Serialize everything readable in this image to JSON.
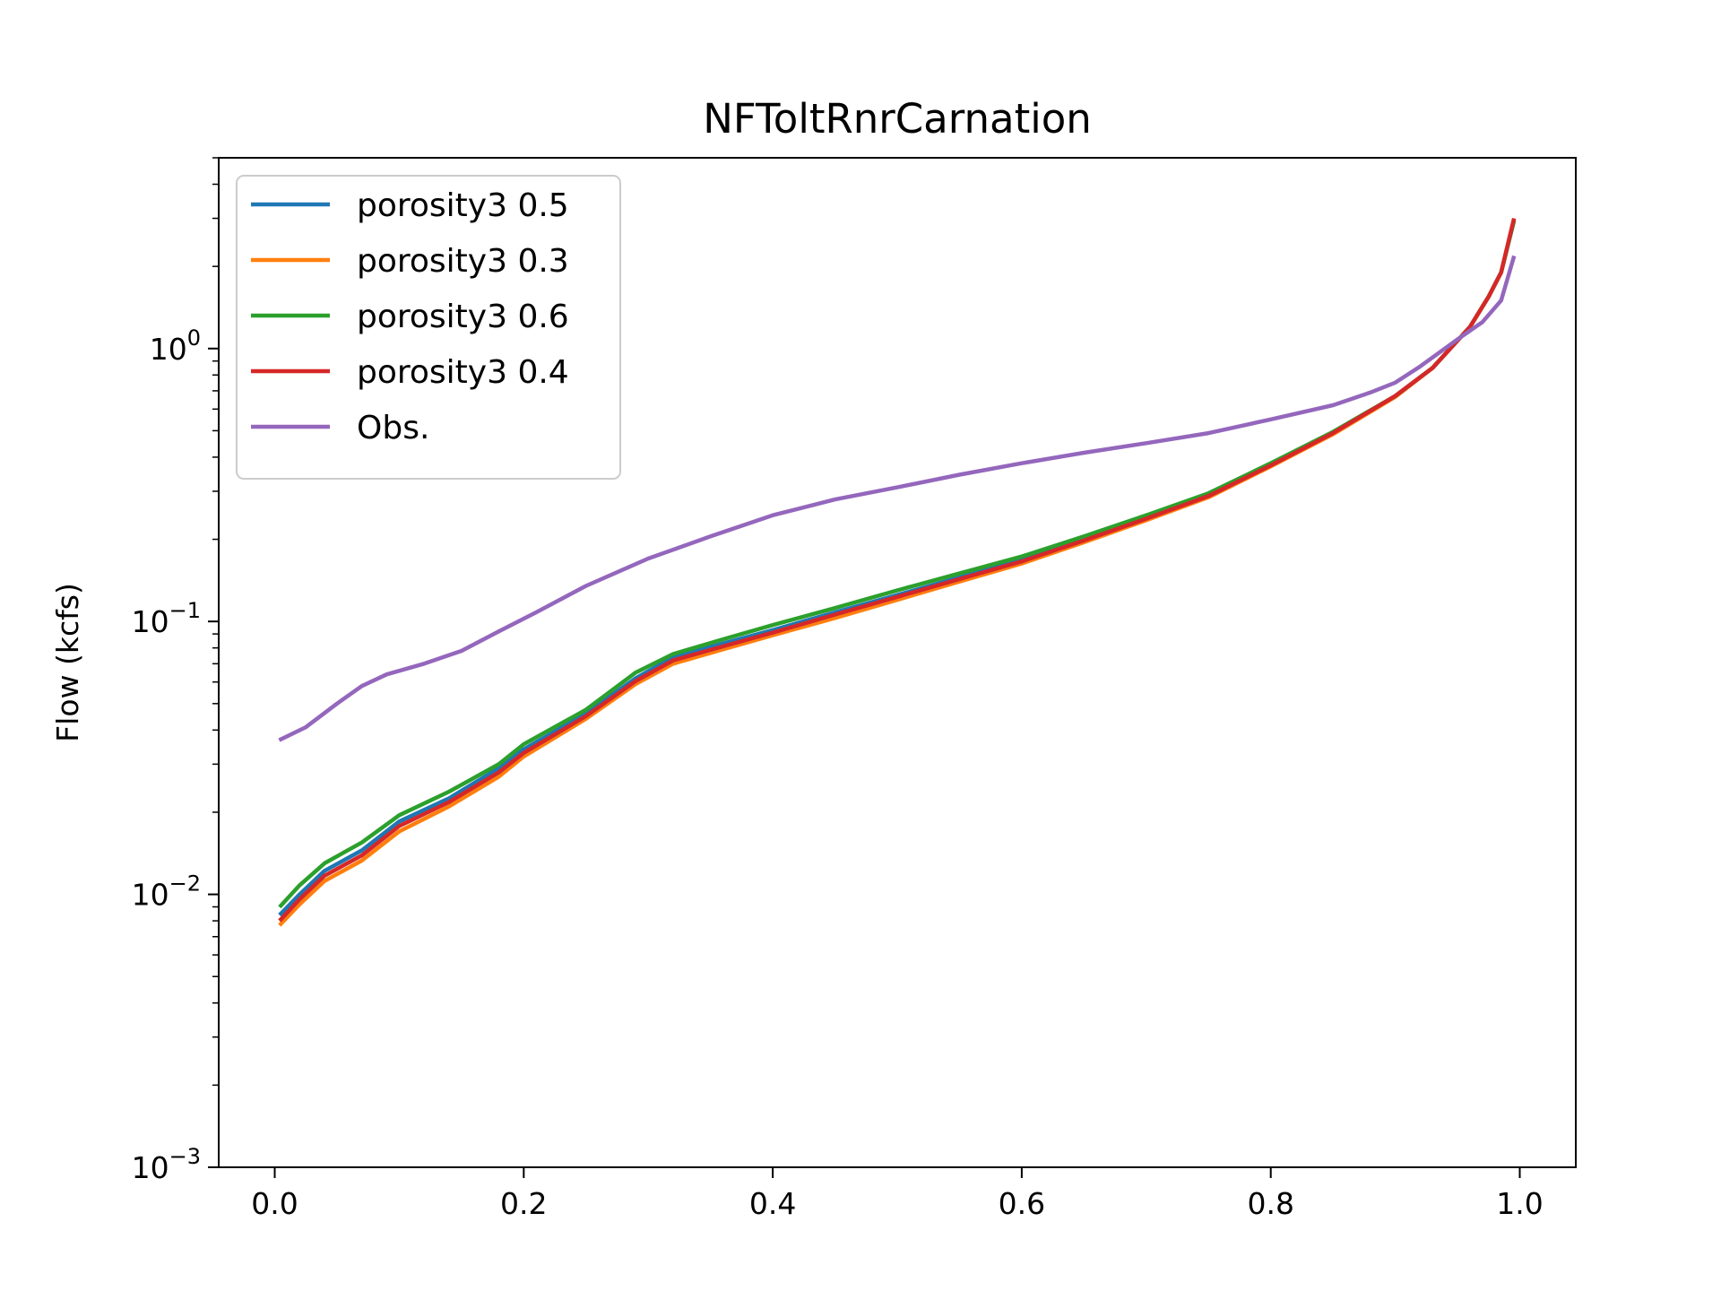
{
  "chart_data": {
    "type": "line",
    "title": "NFToltRnrCarnation",
    "xlabel": "",
    "ylabel": "Flow (kcfs)",
    "yscale": "log",
    "xlim": [
      -0.045,
      1.045
    ],
    "ylim": [
      0.001,
      5.0
    ],
    "grid": false,
    "legend_position": "top-left",
    "x_ticks": [
      {
        "value": 0.0,
        "label": "0.0"
      },
      {
        "value": 0.2,
        "label": "0.2"
      },
      {
        "value": 0.4,
        "label": "0.4"
      },
      {
        "value": 0.6,
        "label": "0.6"
      },
      {
        "value": 0.8,
        "label": "0.8"
      },
      {
        "value": 1.0,
        "label": "1.0"
      }
    ],
    "y_ticks": [
      {
        "value": 0.001,
        "base": "10",
        "exp": "−3"
      },
      {
        "value": 0.01,
        "base": "10",
        "exp": "−2"
      },
      {
        "value": 0.1,
        "base": "10",
        "exp": "−1"
      },
      {
        "value": 1.0,
        "base": "10",
        "exp": "0"
      }
    ],
    "series": [
      {
        "name": "porosity3 0.5",
        "color": "#1f77b4",
        "x": [
          0.005,
          0.02,
          0.04,
          0.07,
          0.1,
          0.14,
          0.18,
          0.2,
          0.25,
          0.29,
          0.32,
          0.36,
          0.4,
          0.45,
          0.5,
          0.55,
          0.6,
          0.65,
          0.7,
          0.75,
          0.8,
          0.85,
          0.9,
          0.93,
          0.96,
          0.975,
          0.985,
          0.995
        ],
        "values": [
          0.0085,
          0.01,
          0.0122,
          0.0145,
          0.0185,
          0.0225,
          0.029,
          0.034,
          0.046,
          0.062,
          0.074,
          0.083,
          0.093,
          0.108,
          0.125,
          0.145,
          0.168,
          0.2,
          0.24,
          0.29,
          0.375,
          0.49,
          0.67,
          0.85,
          1.2,
          1.55,
          1.9,
          2.9
        ]
      },
      {
        "name": "porosity3 0.3",
        "color": "#ff7f0e",
        "x": [
          0.005,
          0.02,
          0.04,
          0.07,
          0.1,
          0.14,
          0.18,
          0.2,
          0.25,
          0.29,
          0.32,
          0.36,
          0.4,
          0.45,
          0.5,
          0.55,
          0.6,
          0.65,
          0.7,
          0.75,
          0.8,
          0.85,
          0.9,
          0.93,
          0.96,
          0.975,
          0.985,
          0.995
        ],
        "values": [
          0.0078,
          0.0092,
          0.0112,
          0.0133,
          0.017,
          0.021,
          0.027,
          0.032,
          0.044,
          0.059,
          0.07,
          0.079,
          0.089,
          0.103,
          0.12,
          0.14,
          0.163,
          0.195,
          0.235,
          0.285,
          0.37,
          0.485,
          0.665,
          0.85,
          1.2,
          1.55,
          1.9,
          2.95
        ]
      },
      {
        "name": "porosity3 0.6",
        "color": "#2ca02c",
        "x": [
          0.005,
          0.02,
          0.04,
          0.07,
          0.1,
          0.14,
          0.18,
          0.2,
          0.25,
          0.29,
          0.32,
          0.36,
          0.4,
          0.45,
          0.5,
          0.55,
          0.6,
          0.65,
          0.7,
          0.75,
          0.8,
          0.85,
          0.9,
          0.93,
          0.96,
          0.975,
          0.985,
          0.995
        ],
        "values": [
          0.0091,
          0.0108,
          0.013,
          0.0155,
          0.0195,
          0.0238,
          0.03,
          0.0355,
          0.0475,
          0.065,
          0.076,
          0.086,
          0.097,
          0.112,
          0.13,
          0.15,
          0.173,
          0.205,
          0.245,
          0.295,
          0.38,
          0.495,
          0.67,
          0.85,
          1.2,
          1.55,
          1.9,
          2.9
        ]
      },
      {
        "name": "porosity3 0.4",
        "color": "#d62728",
        "x": [
          0.005,
          0.02,
          0.04,
          0.07,
          0.1,
          0.14,
          0.18,
          0.2,
          0.25,
          0.29,
          0.32,
          0.36,
          0.4,
          0.45,
          0.5,
          0.55,
          0.6,
          0.65,
          0.7,
          0.75,
          0.8,
          0.85,
          0.9,
          0.93,
          0.96,
          0.975,
          0.985,
          0.995
        ],
        "values": [
          0.0081,
          0.0096,
          0.0117,
          0.0139,
          0.0178,
          0.0218,
          0.028,
          0.033,
          0.045,
          0.0605,
          0.072,
          0.081,
          0.091,
          0.106,
          0.123,
          0.143,
          0.166,
          0.198,
          0.238,
          0.288,
          0.373,
          0.49,
          0.67,
          0.85,
          1.2,
          1.55,
          1.9,
          2.95
        ]
      },
      {
        "name": "Obs.",
        "color": "#9467bd",
        "x": [
          0.005,
          0.025,
          0.05,
          0.07,
          0.09,
          0.12,
          0.15,
          0.18,
          0.21,
          0.25,
          0.3,
          0.35,
          0.4,
          0.45,
          0.5,
          0.55,
          0.6,
          0.65,
          0.7,
          0.75,
          0.8,
          0.85,
          0.88,
          0.9,
          0.92,
          0.95,
          0.97,
          0.985,
          0.995
        ],
        "values": [
          0.037,
          0.041,
          0.05,
          0.058,
          0.064,
          0.07,
          0.078,
          0.092,
          0.108,
          0.135,
          0.17,
          0.205,
          0.245,
          0.28,
          0.31,
          0.345,
          0.38,
          0.415,
          0.45,
          0.49,
          0.55,
          0.62,
          0.69,
          0.75,
          0.86,
          1.08,
          1.25,
          1.5,
          2.15
        ]
      }
    ]
  }
}
